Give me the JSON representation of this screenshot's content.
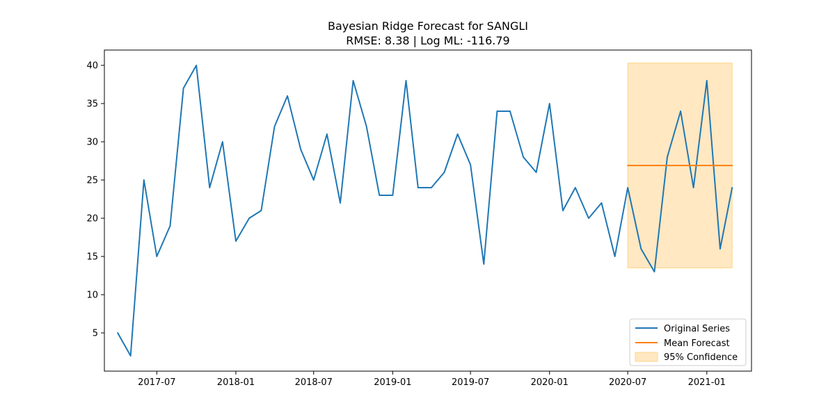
{
  "chart_data": {
    "type": "line",
    "title": "Bayesian Ridge Forecast for SANGLI",
    "subtitle": "RMSE: 8.38 | Log ML: -116.79",
    "xlabel": "",
    "ylabel": "",
    "xlim": [
      "2017-03-01",
      "2021-04-15"
    ],
    "ylim": [
      0,
      42
    ],
    "x_ticks": [
      "2017-07",
      "2018-01",
      "2018-07",
      "2019-01",
      "2019-07",
      "2020-01",
      "2020-07",
      "2021-01"
    ],
    "y_ticks": [
      5,
      10,
      15,
      20,
      25,
      30,
      35,
      40
    ],
    "grid": false,
    "legend_position": "lower-right",
    "series": [
      {
        "name": "Original Series",
        "color": "#1f77b4",
        "x": [
          "2017-04-01",
          "2017-05-01",
          "2017-06-01",
          "2017-07-01",
          "2017-08-01",
          "2017-09-01",
          "2017-10-01",
          "2017-11-01",
          "2017-12-01",
          "2018-01-01",
          "2018-02-01",
          "2018-03-01",
          "2018-04-01",
          "2018-05-01",
          "2018-06-01",
          "2018-07-01",
          "2018-08-01",
          "2018-09-01",
          "2018-10-01",
          "2018-11-01",
          "2018-12-01",
          "2019-01-01",
          "2019-02-01",
          "2019-03-01",
          "2019-04-01",
          "2019-05-01",
          "2019-06-01",
          "2019-07-01",
          "2019-08-01",
          "2019-09-01",
          "2019-10-01",
          "2019-11-01",
          "2019-12-01",
          "2020-01-01",
          "2020-02-01",
          "2020-03-01",
          "2020-04-01",
          "2020-05-01",
          "2020-06-01",
          "2020-07-01",
          "2020-08-01",
          "2020-09-01",
          "2020-10-01",
          "2020-11-01",
          "2020-12-01",
          "2021-01-01",
          "2021-02-01",
          "2021-03-01"
        ],
        "values": [
          5,
          2,
          25,
          15,
          19,
          37,
          40,
          24,
          30,
          17,
          20,
          21,
          32,
          36,
          29,
          25,
          31,
          22,
          38,
          32,
          23,
          23,
          38,
          24,
          24,
          26,
          31,
          27,
          14,
          34,
          34,
          28,
          26,
          35,
          21,
          24,
          20,
          22,
          15,
          24,
          16,
          13,
          28,
          34,
          24,
          38,
          16,
          24
        ]
      },
      {
        "name": "Mean Forecast",
        "color": "#ff7f0e",
        "x": [
          "2020-07-01",
          "2021-03-01"
        ],
        "values": [
          26.9,
          26.9
        ]
      }
    ],
    "confidence_band": {
      "name": "95% Confidence",
      "color": "#ffe8c2",
      "x": [
        "2020-07-01",
        "2021-03-01"
      ],
      "lower": 13.5,
      "upper": 40.3
    }
  }
}
